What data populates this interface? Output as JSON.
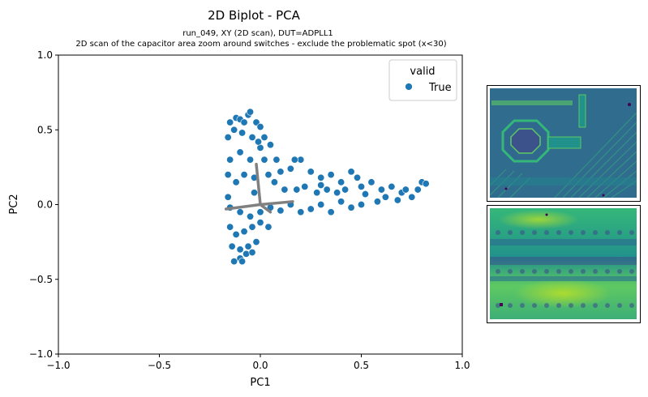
{
  "chart_data": {
    "type": "scatter",
    "title": "2D Biplot - PCA",
    "subtitle_line1": "run_049, XY (2D scan), DUT=ADPLL1",
    "subtitle_line2": "2D scan of the capacitor area zoom around switches - exclude the problematic spot (x<30)",
    "xlabel": "PC1",
    "ylabel": "PC2",
    "xlim": [
      -1.0,
      1.0
    ],
    "ylim": [
      -1.0,
      1.0
    ],
    "xticks": [
      -1.0,
      -0.5,
      0.0,
      0.5,
      1.0
    ],
    "yticks": [
      -1.0,
      -0.5,
      0.0,
      0.5,
      1.0
    ],
    "xtick_labels": [
      "−1.0",
      "−0.5",
      "0.0",
      "0.5",
      "1.0"
    ],
    "ytick_labels": [
      "−1.0",
      "−0.5",
      "0.0",
      "0.5",
      "1.0"
    ],
    "grid": false,
    "legend": {
      "title": "valid",
      "placement": "top-right",
      "entries": [
        "True"
      ]
    },
    "series": [
      {
        "name": "True",
        "color": "#1f77b4",
        "points": [
          [
            -0.15,
            0.55
          ],
          [
            -0.12,
            0.58
          ],
          [
            -0.1,
            0.57
          ],
          [
            -0.08,
            0.55
          ],
          [
            -0.06,
            0.6
          ],
          [
            -0.05,
            0.62
          ],
          [
            -0.02,
            0.55
          ],
          [
            0.0,
            0.52
          ],
          [
            -0.16,
            0.45
          ],
          [
            -0.13,
            0.5
          ],
          [
            -0.09,
            0.48
          ],
          [
            -0.04,
            0.45
          ],
          [
            -0.15,
            0.3
          ],
          [
            -0.1,
            0.35
          ],
          [
            -0.05,
            0.3
          ],
          [
            0.0,
            0.38
          ],
          [
            0.05,
            0.4
          ],
          [
            0.02,
            0.3
          ],
          [
            -0.16,
            0.2
          ],
          [
            -0.12,
            0.15
          ],
          [
            -0.08,
            0.2
          ],
          [
            -0.03,
            0.18
          ],
          [
            0.04,
            0.2
          ],
          [
            0.08,
            0.3
          ],
          [
            0.1,
            0.22
          ],
          [
            0.15,
            0.24
          ],
          [
            0.2,
            0.3
          ],
          [
            0.25,
            0.22
          ],
          [
            0.3,
            0.18
          ],
          [
            0.35,
            0.2
          ],
          [
            0.4,
            0.15
          ],
          [
            0.45,
            0.22
          ],
          [
            0.48,
            0.18
          ],
          [
            0.5,
            0.12
          ],
          [
            0.55,
            0.15
          ],
          [
            0.6,
            0.1
          ],
          [
            0.65,
            0.12
          ],
          [
            0.7,
            0.08
          ],
          [
            0.75,
            0.05
          ],
          [
            0.8,
            0.15
          ],
          [
            0.82,
            0.14
          ],
          [
            0.78,
            0.1
          ],
          [
            0.58,
            0.02
          ],
          [
            0.62,
            0.05
          ],
          [
            0.68,
            0.03
          ],
          [
            0.5,
            0.0
          ],
          [
            0.45,
            -0.02
          ],
          [
            0.4,
            0.02
          ],
          [
            0.35,
            -0.05
          ],
          [
            0.3,
            0.0
          ],
          [
            0.25,
            -0.03
          ],
          [
            0.2,
            -0.05
          ],
          [
            0.15,
            0.0
          ],
          [
            0.1,
            -0.04
          ],
          [
            0.05,
            -0.02
          ],
          [
            0.0,
            -0.05
          ],
          [
            -0.05,
            -0.08
          ],
          [
            -0.1,
            -0.05
          ],
          [
            -0.15,
            -0.02
          ],
          [
            -0.16,
            0.05
          ],
          [
            -0.15,
            -0.15
          ],
          [
            -0.12,
            -0.2
          ],
          [
            -0.08,
            -0.18
          ],
          [
            -0.04,
            -0.15
          ],
          [
            0.0,
            -0.12
          ],
          [
            0.04,
            -0.15
          ],
          [
            -0.14,
            -0.28
          ],
          [
            -0.1,
            -0.3
          ],
          [
            -0.06,
            -0.28
          ],
          [
            -0.02,
            -0.25
          ],
          [
            -0.13,
            -0.38
          ],
          [
            -0.1,
            -0.36
          ],
          [
            -0.09,
            -0.38
          ],
          [
            -0.07,
            -0.33
          ],
          [
            -0.04,
            -0.32
          ],
          [
            0.12,
            0.1
          ],
          [
            0.18,
            0.1
          ],
          [
            0.22,
            0.12
          ],
          [
            0.28,
            0.08
          ],
          [
            0.33,
            0.1
          ],
          [
            0.38,
            0.08
          ],
          [
            0.42,
            0.1
          ],
          [
            0.02,
            0.45
          ],
          [
            -0.01,
            0.42
          ],
          [
            0.07,
            0.15
          ],
          [
            -0.03,
            0.08
          ],
          [
            0.17,
            0.3
          ],
          [
            0.3,
            0.13
          ],
          [
            0.52,
            0.07
          ],
          [
            0.72,
            0.1
          ]
        ]
      }
    ],
    "loading_vectors": {
      "color": "#808080",
      "vectors": [
        [
          -0.02,
          0.27
        ],
        [
          0.16,
          0.02
        ],
        [
          -0.17,
          -0.03
        ],
        [
          0.05,
          -0.05
        ]
      ]
    }
  },
  "colors": {
    "axes": "#000000",
    "vector": "#808080"
  },
  "images": [
    {
      "name": "layout-inset-top",
      "colormap": "viridis"
    },
    {
      "name": "layout-inset-bottom",
      "colormap": "viridis"
    }
  ]
}
